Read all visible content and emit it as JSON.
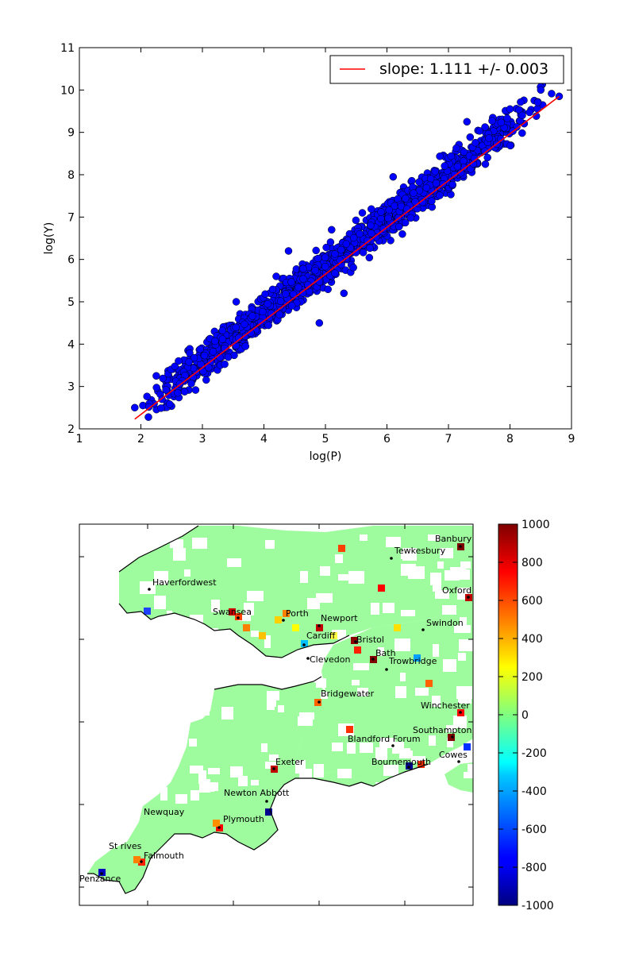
{
  "chart_data": [
    {
      "type": "scatter",
      "xlabel": "log(P)",
      "ylabel": "log(Y)",
      "xlim": [
        1,
        9
      ],
      "ylim": [
        2,
        11
      ],
      "xticks": [
        1,
        2,
        3,
        4,
        5,
        6,
        7,
        8,
        9
      ],
      "yticks": [
        2,
        3,
        4,
        5,
        6,
        7,
        8,
        9,
        10,
        11
      ],
      "legend": {
        "label": "slope: 1.111 +/- 0.003",
        "placement": "top-right"
      },
      "fit_line": {
        "x": [
          1.9,
          8.8
        ],
        "y": [
          2.23,
          9.85
        ],
        "color": "#ff0000"
      },
      "marker_color": "#0000ff",
      "series_approx_count": 1300,
      "scatter_band": {
        "slope": 1.111,
        "intercept": 0.12,
        "spread": 0.22,
        "sample_points": [
          [
            1.9,
            2.5
          ],
          [
            2.25,
            3.25
          ],
          [
            2.6,
            2.85
          ],
          [
            3.1,
            3.45
          ],
          [
            3.55,
            5.0
          ],
          [
            3.7,
            3.95
          ],
          [
            4.2,
            5.6
          ],
          [
            4.4,
            6.2
          ],
          [
            4.9,
            4.5
          ],
          [
            5.1,
            6.7
          ],
          [
            5.3,
            5.2
          ],
          [
            5.6,
            7.1
          ],
          [
            6.1,
            7.95
          ],
          [
            6.25,
            6.6
          ],
          [
            6.8,
            7.8
          ],
          [
            7.3,
            9.25
          ],
          [
            7.6,
            8.25
          ],
          [
            8.0,
            9.55
          ],
          [
            8.2,
            9.4
          ],
          [
            8.5,
            10.0
          ],
          [
            8.8,
            9.85
          ]
        ]
      }
    },
    {
      "type": "heatmap",
      "title": "",
      "colorbar": {
        "min": -1000,
        "max": 1000,
        "ticks": [
          1000,
          800,
          600,
          400,
          200,
          0,
          -200,
          -400,
          -600,
          -800,
          -1000
        ],
        "colormap": "jet"
      },
      "cities": [
        "Banbury",
        "Tewkesbury",
        "Haverfordwest",
        "Oxford",
        "Swansea",
        "Porth",
        "Newport",
        "Swindon",
        "Cardiff",
        "Bristol",
        "Clevedon",
        "Bath",
        "Trowbridge",
        "Bridgewater",
        "Winchester",
        "Southampton",
        "Blandford Forum",
        "Cowes",
        "Exeter",
        "Bournemouth",
        "Newton Abbott",
        "Newquay",
        "Plymouth",
        "St rives",
        "Falmouth",
        "Penzance"
      ]
    }
  ]
}
